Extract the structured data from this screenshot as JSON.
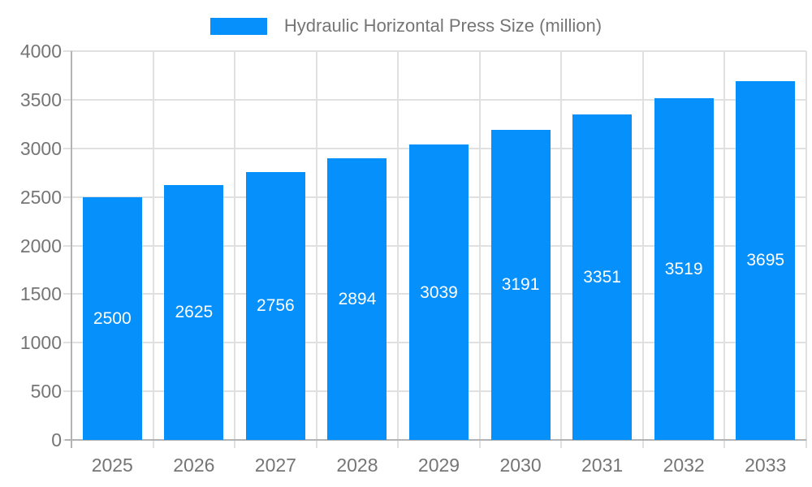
{
  "chart_data": {
    "type": "bar",
    "title": "Hydraulic Horizontal Press Size (million)",
    "categories": [
      "2025",
      "2026",
      "2027",
      "2028",
      "2029",
      "2030",
      "2031",
      "2032",
      "2033"
    ],
    "values": [
      2500,
      2625,
      2756,
      2894,
      3039,
      3191,
      3351,
      3519,
      3695
    ],
    "xlabel": "",
    "ylabel": "",
    "ylim": [
      0,
      4000
    ],
    "yticks": [
      0,
      500,
      1000,
      1500,
      2000,
      2500,
      3000,
      3500,
      4000
    ],
    "grid": "on",
    "legend_position": "top-center",
    "bar_labels_inside": true,
    "colors": {
      "bar": "#0590fc",
      "bar_label_text": "#ffffff",
      "axis_text": "#757575",
      "legend_text": "#757575",
      "gridline": "#e0e0e0",
      "axis_line": "#b3b3b3"
    }
  }
}
